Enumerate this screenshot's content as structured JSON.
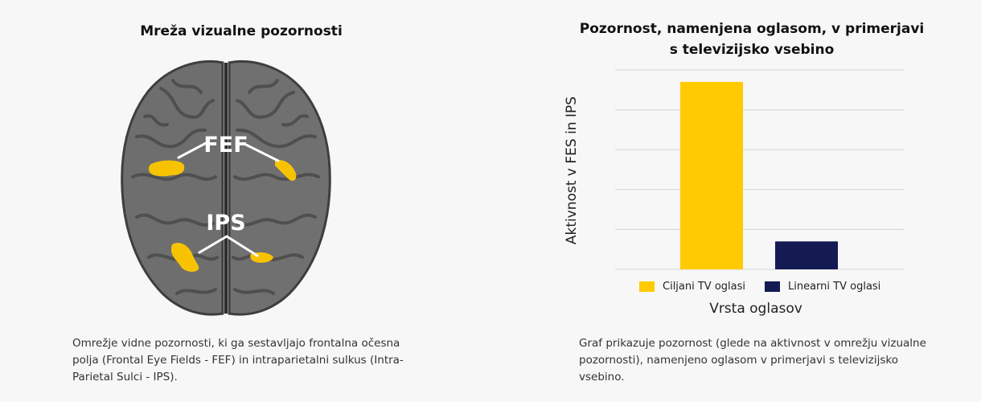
{
  "left": {
    "title": "Mreža vizualne pozornosti",
    "brain_labels": {
      "fef": "FEF",
      "ips": "IPS"
    },
    "caption": "Omrežje vidne pozornosti, ki ga sestavljajo frontalna očesna polja (Frontal Eye Fields - FEF) in intraparietalni sulkus (Intra-Parietal Sulci - IPS).",
    "colors": {
      "highlight": "#f7c300",
      "brain": "#6e6e6e",
      "brain_dark": "#4f4f4f"
    }
  },
  "right": {
    "caption": "Graf prikazuje pozornost (glede na aktivnost v omrežju vizualne pozornosti), namenjeno oglasom v primerjavi s televizijsko vsebino."
  },
  "chart_data": {
    "type": "bar",
    "title_lines": [
      "Pozornost, namenjena oglasom, v primerjavi",
      "s televizijsko vsebino"
    ],
    "xlabel": "Vrsta oglasov",
    "ylabel": "Aktivnost v FES in IPS",
    "categories": [
      "Ciljani TV oglasi",
      "Linearni TV oglasi"
    ],
    "values": [
      94,
      14
    ],
    "colors": [
      "#ffca00",
      "#141a52"
    ],
    "ylim": [
      0,
      100
    ],
    "ticks": [
      0,
      20,
      40,
      60,
      80,
      100
    ],
    "grid": true,
    "tick_labels_shown": false,
    "legend": [
      {
        "label": "Ciljani TV oglasi",
        "color": "#ffca00"
      },
      {
        "label": "Linearni TV oglasi",
        "color": "#141a52"
      }
    ],
    "legend_position": "bottom"
  }
}
